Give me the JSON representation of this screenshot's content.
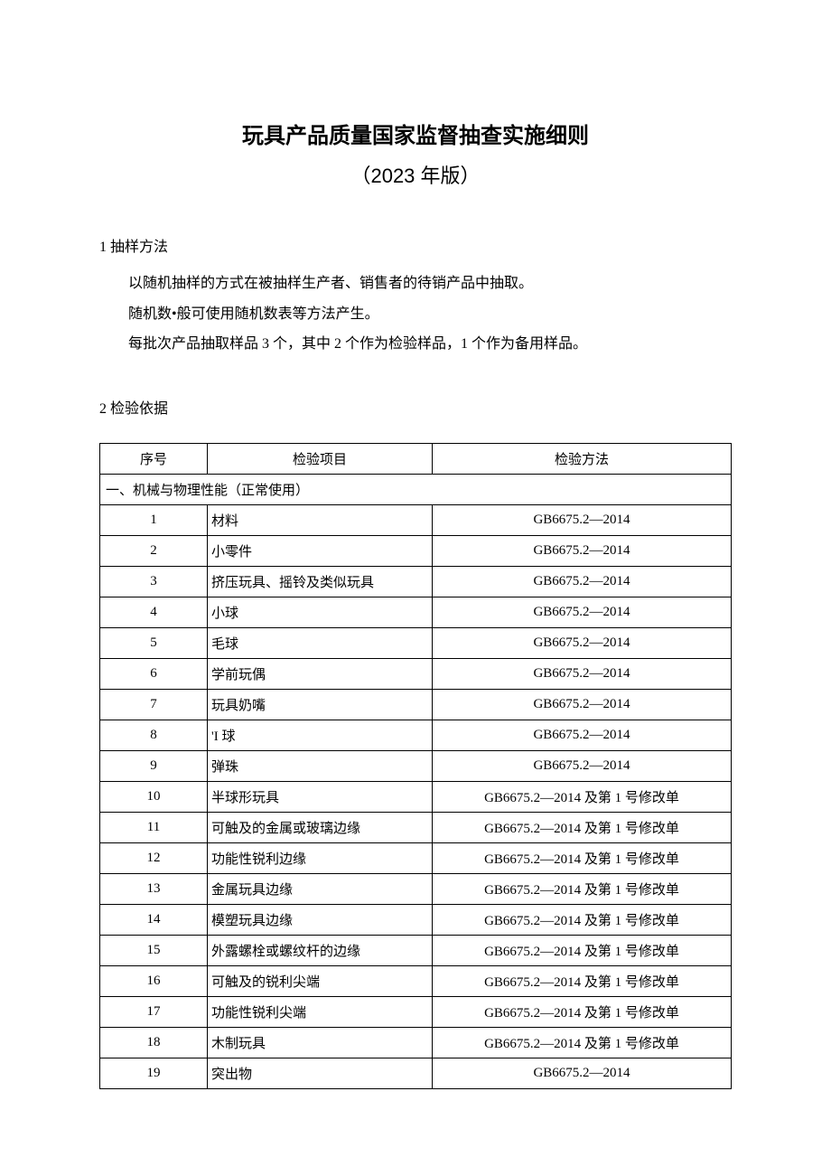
{
  "title": {
    "main": "玩具产品质量国家监督抽查实施细则",
    "sub": "（2023 年版）"
  },
  "section1": {
    "heading": "1 抽样方法",
    "p1": "以随机抽样的方式在被抽样生产者、销售者的待销产品中抽取。",
    "p2": "随机数•般可使用随机数表等方法产生。",
    "p3": "每批次产品抽取样品 3 个，其中 2 个作为检验样品，1 个作为备用样品。"
  },
  "section2": {
    "heading": "2 检验依据"
  },
  "table": {
    "headers": {
      "idx": "序号",
      "item": "检验项目",
      "method": "检验方法"
    },
    "group_label": "一、机械与物理性能（正常使用）",
    "rows": [
      {
        "idx": "1",
        "item": "材料",
        "method": "GB6675.2—2014"
      },
      {
        "idx": "2",
        "item": "小零件",
        "method": "GB6675.2—2014"
      },
      {
        "idx": "3",
        "item": "挤压玩具、摇铃及类似玩具",
        "method": "GB6675.2—2014"
      },
      {
        "idx": "4",
        "item": "小球",
        "method": "GB6675.2—2014"
      },
      {
        "idx": "5",
        "item": "毛球",
        "method": "GB6675.2—2014"
      },
      {
        "idx": "6",
        "item": "学前玩偶",
        "method": "GB6675.2—2014"
      },
      {
        "idx": "7",
        "item": "玩具奶嘴",
        "method": "GB6675.2—2014"
      },
      {
        "idx": "8",
        "item": "'I 球",
        "method": "GB6675.2—2014"
      },
      {
        "idx": "9",
        "item": "弹珠",
        "method": "GB6675.2—2014"
      },
      {
        "idx": "10",
        "item": "半球形玩具",
        "method": "GB6675.2—2014 及第 1 号修改单"
      },
      {
        "idx": "11",
        "item": "可触及的金属或玻璃边缘",
        "method": "GB6675.2—2014 及第 1 号修改单"
      },
      {
        "idx": "12",
        "item": "功能性锐利边缘",
        "method": "GB6675.2—2014 及第 1 号修改单"
      },
      {
        "idx": "13",
        "item": "金属玩具边缘",
        "method": "GB6675.2—2014 及第 1 号修改单"
      },
      {
        "idx": "14",
        "item": "模塑玩具边缘",
        "method": "GB6675.2—2014 及第 1 号修改单"
      },
      {
        "idx": "15",
        "item": "外露螺栓或螺纹杆的边缘",
        "method": "GB6675.2—2014 及第 1 号修改单"
      },
      {
        "idx": "16",
        "item": "可触及的锐利尖端",
        "method": "GB6675.2—2014 及第 1 号修改单"
      },
      {
        "idx": "17",
        "item": "功能性锐利尖端",
        "method": "GB6675.2—2014 及第 1 号修改单"
      },
      {
        "idx": "18",
        "item": "木制玩具",
        "method": "GB6675.2—2014 及第 1 号修改单"
      },
      {
        "idx": "19",
        "item": "突出物",
        "method": "GB6675.2—2014"
      }
    ]
  }
}
